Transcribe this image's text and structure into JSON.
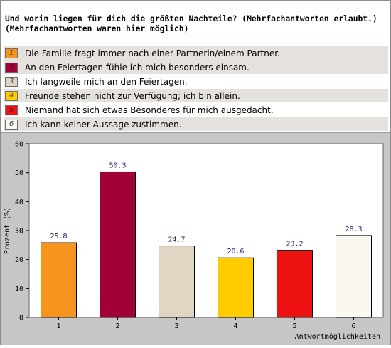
{
  "question": {
    "line1": "Und worin liegen für dich die größten Nachteile? (Mehrfachantworten erlaubt.)",
    "line2": "(Mehrfachantworten waren hier möglich)"
  },
  "legend": [
    {
      "num": "1",
      "label": "Die Familie fragt immer nach einer Partnerin/einem Partner.",
      "color": "#f7941d"
    },
    {
      "num": "2",
      "label": "An den Feiertagen fühle ich mich besonders einsam.",
      "color": "#a10038"
    },
    {
      "num": "3",
      "label": "Ich langweile mich an den Feiertagen.",
      "color": "#e0d6c3"
    },
    {
      "num": "4",
      "label": "Freunde stehen nicht zur Verfügung; ich bin allein.",
      "color": "#ffcc00"
    },
    {
      "num": "5",
      "label": "Niemand hat sich etwas Besonderes für mich ausgedacht.",
      "color": "#ee1111"
    },
    {
      "num": "6",
      "label": "Ich kann keiner Aussage zustimmen.",
      "color": "#faf8f0"
    }
  ],
  "chart_data": {
    "type": "bar",
    "categories": [
      "1",
      "2",
      "3",
      "4",
      "5",
      "6"
    ],
    "values": [
      25.8,
      50.3,
      24.7,
      20.6,
      23.2,
      28.3
    ],
    "value_labels": [
      "25.8",
      "50.3",
      "24.7",
      "20.6",
      "23.2",
      "28.3"
    ],
    "colors": [
      "#f7941d",
      "#a10038",
      "#e0d6c3",
      "#ffcc00",
      "#ee1111",
      "#faf8f0"
    ],
    "ylabel": "Prozent (%)",
    "xlabel": "Antwortmöglichkeiten",
    "ylim": [
      0,
      60
    ],
    "yticks": [
      "0",
      "10",
      "20",
      "30",
      "40",
      "50",
      "60"
    ],
    "grid": false
  }
}
